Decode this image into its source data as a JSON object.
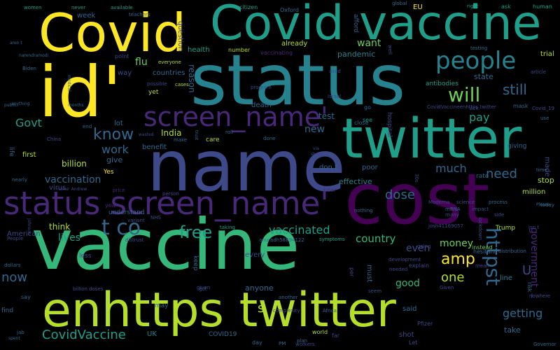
{
  "palette": {
    "background": "#000000",
    "yellow": "#fde725",
    "lime": "#b5de2b",
    "green": "#6ece58",
    "teal_green": "#35b779",
    "teal": "#1f9e89",
    "blue_teal": "#26828e",
    "blue": "#31688e",
    "indigo": "#3e4989",
    "violet": "#482878",
    "purple": "#440154"
  },
  "words": [
    "Covid",
    "Covid vaccine",
    "status",
    "id'",
    "name",
    "twitter",
    "cost",
    "vaccine",
    "enhttps twitter",
    "status screen_name'",
    "screen_name'",
    "people",
    "will",
    "still",
    "know",
    "work",
    "t co",
    "free",
    "vaccinated",
    "amp",
    "httpst",
    "dose",
    "much",
    "need",
    "country",
    "money",
    "getting",
    "pay",
    "want",
    "flu",
    "Govt",
    "India",
    "new",
    "test",
    "CovidVaccine",
    "lives",
    "think",
    "vaccination",
    "billion",
    "now",
    "one",
    "government",
    "good",
    "even",
    "already",
    "pandemic",
    "health",
    "state",
    "week",
    "EU",
    "citizen",
    "Oxford",
    "human",
    "trial",
    "stop",
    "million",
    "take",
    "UK",
    "American",
    "give",
    "first",
    "virus",
    "life",
    "lot",
    "benefit",
    "care",
    "effective",
    "rate",
    "must",
    "U",
    "line",
    "s",
    "COVID19",
    "anyone",
    "said",
    "shot",
    "Trump",
    "death",
    "poor",
    "don t",
    "countries",
    "way",
    "yet",
    "vaccinating",
    "number",
    "antibodies",
    "point",
    "question",
    "reason",
    "never",
    "available",
    "teachers",
    "afford",
    "made",
    "giving",
    "Yes",
    "every",
    "less",
    "explain",
    "instead",
    "today",
    "mask",
    "Let",
    "far",
    "plan",
    "day",
    "keep",
    "needed",
    "nothing",
    "taking",
    "symptoms",
    "development",
    "going",
    "distribution",
    "lockdown",
    "risk",
    "hesitant",
    "mean",
    "world",
    "another",
    "Africa",
    "Governor",
    "Biden",
    "China",
    "understand",
    "year",
    "price",
    "person",
    "hear",
    "time",
    "workers",
    "well",
    "used",
    "close",
    "see",
    "go",
    "hospital",
    "testing",
    "right",
    "ask",
    "global",
    "use",
    "sick",
    "Covid_19",
    "article",
    "Israel",
    "program",
    "cases",
    "possible",
    "everyone",
    "women",
    "aren t",
    "narendramodi",
    "anything",
    "nearly",
    "public",
    "months",
    "medical",
    "end",
    "roll",
    "make",
    "done",
    "trust",
    "wasted",
    "variant",
    "via",
    "shows",
    "30s",
    "nowhere",
    "Please",
    "NHS",
    "People",
    "Johnson",
    "distrust",
    "dollars",
    "billion doses",
    "jab",
    "spent",
    "find",
    "complexity",
    "given",
    "may",
    "seem",
    "per",
    "got",
    "say",
    "isn t",
    "J",
    "PM",
    "Pfizer",
    "Given",
    "name' Andrew",
    "anuradh58894122",
    "josh41169057",
    "CovidVaccineenhttps twitter",
    "process",
    "impact",
    "mRNA",
    "science",
    "Moderna",
    "many",
    "side",
    "effects"
  ]
}
